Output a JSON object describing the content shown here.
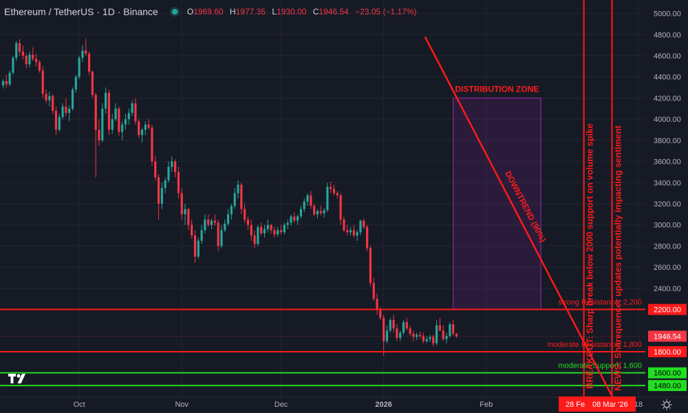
{
  "header": {
    "symbol": "Ethereum / TetherUS · 1D · Binance",
    "ohlc": [
      {
        "k": "O",
        "v": "1969.60"
      },
      {
        "k": "H",
        "v": "1977.35"
      },
      {
        "k": "L",
        "v": "1930.00"
      },
      {
        "k": "C",
        "v": "1946.54"
      }
    ],
    "change": "−23.05 (−1.17%)"
  },
  "colors": {
    "up": "#26a69a",
    "down": "#f23645",
    "background": "#161a25",
    "annotation_red": "#ff1a1a",
    "annotation_green": "#22dd22",
    "zone_border": "#9c27b0"
  },
  "chart_data": {
    "type": "candlestick",
    "y_axis": {
      "ticks": [
        "5000.00",
        "4800.00",
        "4600.00",
        "4400.00",
        "4200.00",
        "4000.00",
        "3800.00",
        "3600.00",
        "3400.00",
        "3200.00",
        "3000.00",
        "2800.00",
        "2600.00",
        "2400.00"
      ],
      "range": [
        1370,
        5095
      ],
      "position": "right"
    },
    "x_axis": {
      "labels": [
        {
          "text": "Oct",
          "day": 23
        },
        {
          "text": "Nov",
          "day": 54
        },
        {
          "text": "Dec",
          "day": 84
        },
        {
          "text": "2026",
          "day": 115
        },
        {
          "text": "Feb",
          "day": 146
        },
        {
          "text": "18",
          "day": 192
        }
      ]
    },
    "last_price": {
      "value": 1946.54,
      "label": "1946.54"
    },
    "candles": [
      [
        4320,
        4380,
        4290,
        4360
      ],
      [
        4360,
        4420,
        4300,
        4330
      ],
      [
        4330,
        4460,
        4310,
        4440
      ],
      [
        4440,
        4600,
        4420,
        4580
      ],
      [
        4580,
        4740,
        4550,
        4720
      ],
      [
        4720,
        4760,
        4600,
        4640
      ],
      [
        4640,
        4700,
        4560,
        4600
      ],
      [
        4600,
        4620,
        4480,
        4520
      ],
      [
        4520,
        4640,
        4490,
        4610
      ],
      [
        4610,
        4680,
        4550,
        4570
      ],
      [
        4570,
        4620,
        4500,
        4540
      ],
      [
        4540,
        4560,
        4440,
        4460
      ],
      [
        4460,
        4500,
        4200,
        4240
      ],
      [
        4240,
        4280,
        4150,
        4180
      ],
      [
        4180,
        4260,
        4120,
        4220
      ],
      [
        4220,
        4240,
        4050,
        4080
      ],
      [
        4080,
        4120,
        3850,
        3900
      ],
      [
        3900,
        4050,
        3880,
        4020
      ],
      [
        4020,
        4150,
        4000,
        4120
      ],
      [
        4120,
        4200,
        4030,
        4060
      ],
      [
        4060,
        4130,
        3980,
        4100
      ],
      [
        4100,
        4300,
        4080,
        4280
      ],
      [
        4280,
        4420,
        4250,
        4400
      ],
      [
        4400,
        4600,
        4380,
        4580
      ],
      [
        4580,
        4700,
        4540,
        4650
      ],
      [
        4650,
        4760,
        4600,
        4620
      ],
      [
        4620,
        4640,
        4420,
        4450
      ],
      [
        4450,
        4460,
        4200,
        4230
      ],
      [
        4230,
        4250,
        3450,
        3900
      ],
      [
        3900,
        4000,
        3750,
        3800
      ],
      [
        3800,
        4150,
        3780,
        4100
      ],
      [
        4100,
        4300,
        4050,
        4250
      ],
      [
        4250,
        4280,
        3850,
        3900
      ],
      [
        3900,
        4050,
        3860,
        4000
      ],
      [
        4000,
        4150,
        3980,
        4100
      ],
      [
        4100,
        4120,
        3840,
        3880
      ],
      [
        3880,
        3980,
        3800,
        3950
      ],
      [
        3950,
        4050,
        3900,
        4000
      ],
      [
        4000,
        4100,
        3950,
        4060
      ],
      [
        4060,
        4180,
        4030,
        4150
      ],
      [
        4150,
        4200,
        3950,
        3980
      ],
      [
        3980,
        4000,
        3820,
        3850
      ],
      [
        3850,
        3920,
        3780,
        3900
      ],
      [
        3900,
        3980,
        3850,
        3950
      ],
      [
        3950,
        4000,
        3900,
        3920
      ],
      [
        3920,
        3950,
        3560,
        3600
      ],
      [
        3600,
        3650,
        3420,
        3450
      ],
      [
        3450,
        3480,
        3050,
        3200
      ],
      [
        3200,
        3400,
        3150,
        3350
      ],
      [
        3350,
        3450,
        3300,
        3420
      ],
      [
        3420,
        3600,
        3400,
        3550
      ],
      [
        3550,
        3650,
        3500,
        3600
      ],
      [
        3600,
        3620,
        3450,
        3500
      ],
      [
        3500,
        3550,
        3250,
        3300
      ],
      [
        3300,
        3350,
        3050,
        3100
      ],
      [
        3100,
        3200,
        3000,
        3150
      ],
      [
        3150,
        3160,
        2950,
        3000
      ],
      [
        3000,
        3050,
        2870,
        2900
      ],
      [
        2900,
        2950,
        2640,
        2700
      ],
      [
        2700,
        2880,
        2680,
        2850
      ],
      [
        2850,
        3000,
        2820,
        2950
      ],
      [
        2950,
        3100,
        2920,
        3050
      ],
      [
        3050,
        3100,
        2980,
        3000
      ],
      [
        3000,
        3060,
        2960,
        3040
      ],
      [
        3040,
        3100,
        2990,
        3020
      ],
      [
        3020,
        3050,
        2750,
        2800
      ],
      [
        2800,
        3000,
        2780,
        2950
      ],
      [
        2950,
        3050,
        2930,
        3010
      ],
      [
        3010,
        3150,
        2990,
        3100
      ],
      [
        3100,
        3200,
        3050,
        3180
      ],
      [
        3180,
        3350,
        3150,
        3300
      ],
      [
        3300,
        3420,
        3250,
        3380
      ],
      [
        3380,
        3400,
        3100,
        3150
      ],
      [
        3150,
        3200,
        3020,
        3050
      ],
      [
        3050,
        3080,
        2950,
        3000
      ],
      [
        3000,
        3050,
        2850,
        2900
      ],
      [
        2900,
        2950,
        2780,
        2820
      ],
      [
        2820,
        3000,
        2800,
        2980
      ],
      [
        2980,
        3020,
        2900,
        2920
      ],
      [
        2920,
        3000,
        2880,
        2960
      ],
      [
        2960,
        3050,
        2930,
        3000
      ],
      [
        3000,
        3010,
        2920,
        2950
      ],
      [
        2950,
        2980,
        2880,
        2910
      ],
      [
        2910,
        2980,
        2890,
        2950
      ],
      [
        2950,
        3000,
        2910,
        2930
      ],
      [
        2930,
        3020,
        2910,
        3000
      ],
      [
        3000,
        3050,
        2960,
        3020
      ],
      [
        3020,
        3100,
        2990,
        3080
      ],
      [
        3080,
        3120,
        3020,
        3040
      ],
      [
        3040,
        3100,
        3000,
        3080
      ],
      [
        3080,
        3180,
        3060,
        3150
      ],
      [
        3150,
        3250,
        3120,
        3220
      ],
      [
        3220,
        3300,
        3180,
        3280
      ],
      [
        3280,
        3320,
        3150,
        3180
      ],
      [
        3180,
        3200,
        3080,
        3100
      ],
      [
        3100,
        3150,
        3060,
        3130
      ],
      [
        3130,
        3180,
        3090,
        3110
      ],
      [
        3110,
        3160,
        3070,
        3140
      ],
      [
        3140,
        3400,
        3120,
        3360
      ],
      [
        3360,
        3410,
        3300,
        3340
      ],
      [
        3340,
        3380,
        3280,
        3300
      ],
      [
        3300,
        3320,
        3250,
        3280
      ],
      [
        3280,
        3300,
        3000,
        3050
      ],
      [
        3050,
        3080,
        2930,
        2950
      ],
      [
        2950,
        3000,
        2900,
        2930
      ],
      [
        2930,
        2980,
        2900,
        2950
      ],
      [
        2950,
        3000,
        2880,
        2900
      ],
      [
        2900,
        2950,
        2850,
        2930
      ],
      [
        2930,
        3050,
        2900,
        3040
      ],
      [
        3040,
        3060,
        2960,
        2980
      ],
      [
        2980,
        3000,
        2750,
        2780
      ],
      [
        2780,
        2800,
        2420,
        2450
      ],
      [
        2450,
        2500,
        2280,
        2300
      ],
      [
        2300,
        2350,
        2150,
        2200
      ],
      [
        2200,
        2220,
        2100,
        2120
      ],
      [
        2120,
        2150,
        1760,
        1900
      ],
      [
        1900,
        2050,
        1880,
        2000
      ],
      [
        2000,
        2120,
        1980,
        2100
      ],
      [
        2100,
        2150,
        1980,
        2020
      ],
      [
        2020,
        2060,
        1900,
        1930
      ],
      [
        1930,
        2000,
        1900,
        1980
      ],
      [
        1980,
        2100,
        1960,
        2080
      ],
      [
        2080,
        2120,
        2000,
        2020
      ],
      [
        2020,
        2050,
        1950,
        1970
      ],
      [
        1970,
        2000,
        1900,
        1940
      ],
      [
        1940,
        1980,
        1910,
        1960
      ],
      [
        1960,
        1990,
        1920,
        1950
      ],
      [
        1950,
        1980,
        1880,
        1900
      ],
      [
        1900,
        1950,
        1880,
        1920
      ],
      [
        1920,
        1960,
        1890,
        1940
      ],
      [
        1940,
        1960,
        1850,
        1880
      ],
      [
        1880,
        2100,
        1860,
        2050
      ],
      [
        2050,
        2120,
        1990,
        2000
      ],
      [
        2000,
        2050,
        1900,
        1920
      ],
      [
        1920,
        1980,
        1880,
        1950
      ],
      [
        1950,
        2080,
        1930,
        2060
      ],
      [
        2060,
        2100,
        1950,
        1970
      ],
      [
        1970,
        1977,
        1930,
        1946
      ]
    ]
  },
  "annotations": {
    "zone_label": "DISTRIBUTION ZONE",
    "trend_label": "DOWNTREND (90%)",
    "vline1_label": "BREAKOUT: Sharp break below 2000 support on volume spike",
    "vline2_label": "NEWS: Sharequencer updates potentially impacting sentiment",
    "lines": [
      {
        "label": "strong Resistance: 2,200",
        "price": 2200,
        "price_label": "2200.00",
        "color": "#ff1a1a"
      },
      {
        "label": "moderate Resistance: 1,800",
        "price": 1800,
        "price_label": "1800.00",
        "color": "#ff1a1a"
      },
      {
        "label": "moderate Support: 1,600",
        "price": 1600,
        "price_label": "1600.00",
        "color": "#22dd22"
      },
      {
        "label": "",
        "price": 1480,
        "price_label": "1480.00",
        "color": "#22dd22"
      }
    ],
    "date_labels": [
      "28 Fe",
      "08 Mar '26"
    ]
  }
}
